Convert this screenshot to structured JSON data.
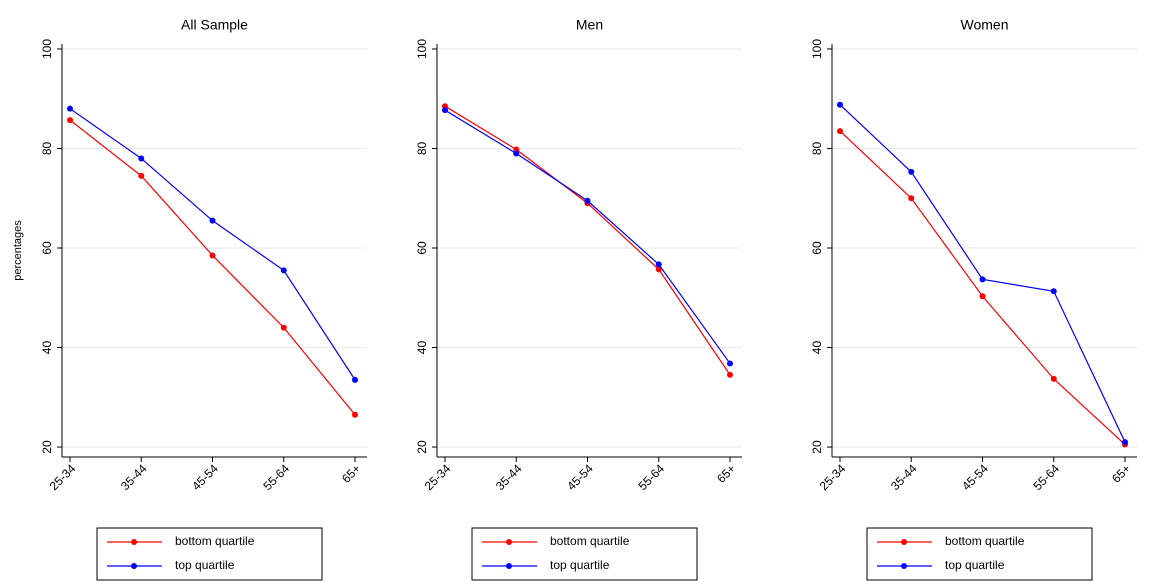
{
  "chart_data": [
    {
      "type": "line",
      "title": "All Sample",
      "y_label": "percentages",
      "categories": [
        "25-34",
        "35-44",
        "45-54",
        "55-64",
        "65+"
      ],
      "series": [
        {
          "name": "bottom quartile",
          "color": "#ff0000",
          "values": [
            85.7,
            74.5,
            58.5,
            44,
            26.5
          ]
        },
        {
          "name": "top quartile",
          "color": "#0000ff",
          "values": [
            88,
            78,
            65.5,
            55.5,
            33.5
          ]
        }
      ],
      "ylim": [
        18,
        101
      ],
      "yticks": [
        20,
        40,
        60,
        80,
        100
      ],
      "grid": true,
      "legend": "bottom"
    },
    {
      "type": "line",
      "title": "Men",
      "categories": [
        "25-34",
        "35-44",
        "45-54",
        "55-64",
        "65+"
      ],
      "series": [
        {
          "name": "bottom quartile",
          "color": "#ff0000",
          "values": [
            88.5,
            79.8,
            69,
            55.7,
            34.5
          ]
        },
        {
          "name": "top quartile",
          "color": "#0000ff",
          "values": [
            87.7,
            79,
            69.5,
            56.7,
            36.8
          ]
        }
      ],
      "ylim": [
        18,
        101
      ],
      "yticks": [
        20,
        40,
        60,
        80,
        100
      ],
      "grid": true,
      "legend": "bottom"
    },
    {
      "type": "line",
      "title": "Women",
      "categories": [
        "25-34",
        "35-44",
        "45-54",
        "55-64",
        "65+"
      ],
      "series": [
        {
          "name": "bottom quartile",
          "color": "#ff0000",
          "values": [
            83.5,
            70,
            50.3,
            33.7,
            20.5
          ]
        },
        {
          "name": "top quartile",
          "color": "#0000ff",
          "values": [
            88.8,
            75.3,
            53.7,
            51.3,
            21
          ]
        }
      ],
      "ylim": [
        18,
        101
      ],
      "yticks": [
        20,
        40,
        60,
        80,
        100
      ],
      "grid": true,
      "legend": "bottom"
    }
  ]
}
